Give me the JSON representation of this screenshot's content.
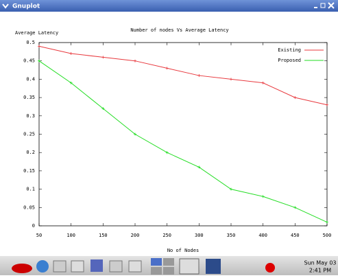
{
  "window": {
    "title": "Gnuplot"
  },
  "chart_data": {
    "type": "line",
    "title": "Number of nodes Vs Average Latency",
    "x_label": "No of Nodes",
    "y_label": "Average Latency",
    "x": [
      50,
      100,
      150,
      200,
      250,
      300,
      350,
      400,
      450,
      500
    ],
    "series": [
      {
        "name": "Existing",
        "color": "#e8383d",
        "values": [
          0.49,
          0.47,
          0.46,
          0.45,
          0.43,
          0.41,
          0.4,
          0.39,
          0.35,
          0.33
        ]
      },
      {
        "name": "Proposed",
        "color": "#22dd22",
        "values": [
          0.45,
          0.39,
          0.32,
          0.25,
          0.2,
          0.16,
          0.1,
          0.08,
          0.05,
          0.01
        ]
      }
    ],
    "xlim": [
      50,
      500
    ],
    "xticks": [
      50,
      100,
      150,
      200,
      250,
      300,
      350,
      400,
      450,
      500
    ],
    "ylim": [
      0,
      0.5
    ],
    "yticks": [
      0,
      0.05,
      0.1,
      0.15,
      0.2,
      0.25,
      0.3,
      0.35,
      0.4,
      0.45,
      0.5
    ],
    "legend": "top-right"
  },
  "taskbar": {
    "date": "Sun May 03",
    "time": "2:41 PM"
  }
}
